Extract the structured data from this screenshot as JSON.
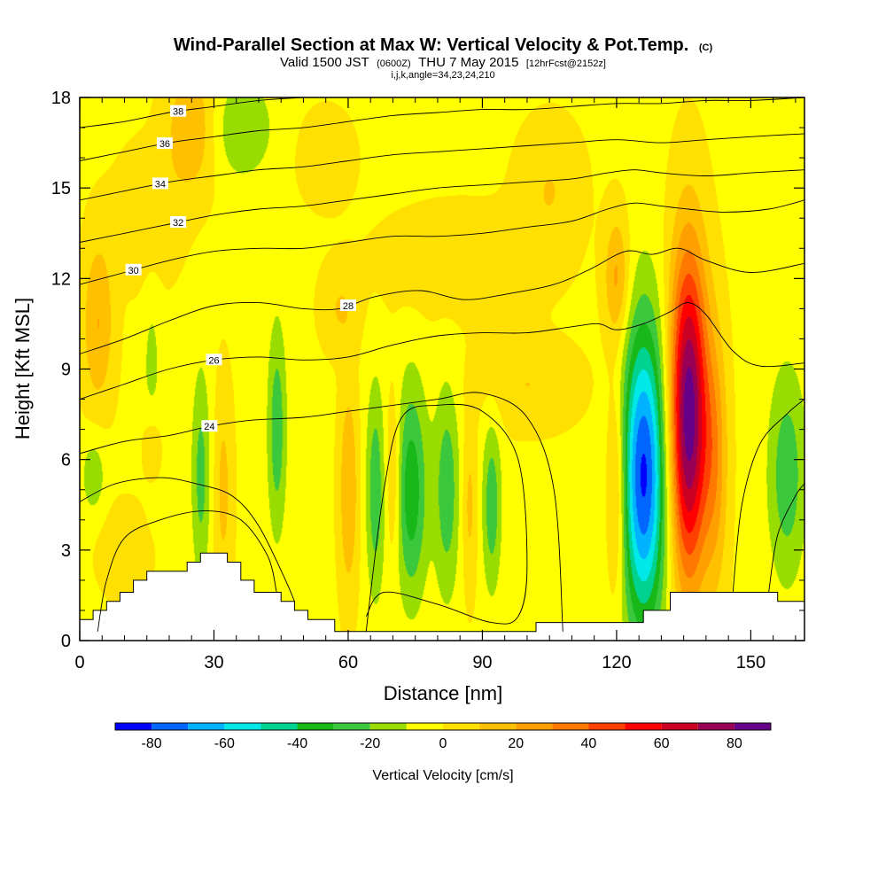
{
  "chart_data": {
    "type": "heatmap",
    "title": "Wind-Parallel Section at Max W: Vertical Velocity & Pot.Temp.",
    "title_mark": "(C)",
    "subtitle_parts": [
      "Valid 1500 JST",
      "(0600Z)",
      "THU 7 May 2015",
      "[12hrFcst@2152z]"
    ],
    "subtitle2": "i,j,k,angle=34,23,24,210",
    "xlabel": "Distance [nm]",
    "ylabel": "Height [Kft MSL]",
    "xlim": [
      0,
      162
    ],
    "ylim": [
      0,
      18
    ],
    "x_ticks": [
      0,
      30,
      60,
      90,
      120,
      150
    ],
    "y_ticks": [
      0,
      3,
      6,
      9,
      12,
      15,
      18
    ],
    "colorbar": {
      "label": "Vertical Velocity [cm/s]",
      "levels": [
        -90,
        -80,
        -70,
        -60,
        -50,
        -40,
        -30,
        -20,
        -10,
        0,
        10,
        20,
        30,
        40,
        50,
        60,
        70,
        80,
        90
      ],
      "colors": [
        "#0000ff",
        "#0066ff",
        "#00b2ff",
        "#00e8e8",
        "#00d290",
        "#18b818",
        "#3cc83c",
        "#99dd00",
        "#ffff00",
        "#ffe000",
        "#ffc000",
        "#ffa000",
        "#ff7800",
        "#ff4000",
        "#ff0000",
        "#cc0022",
        "#990055",
        "#660088"
      ],
      "tick_values": [
        -80,
        -60,
        -40,
        -20,
        0,
        20,
        40,
        60,
        80
      ]
    },
    "background_color": "#99dd00",
    "features": [
      {
        "x": 126,
        "y": 5.5,
        "sx": 3.5,
        "sy": 3.5,
        "w": -80
      },
      {
        "x": 136,
        "y": 7.5,
        "sx": 3.0,
        "sy": 3.8,
        "w": 90
      },
      {
        "x": 74,
        "y": 5.0,
        "sx": 2.5,
        "sy": 2.5,
        "w": -35
      },
      {
        "x": 66,
        "y": 5.0,
        "sx": 1.5,
        "sy": 2.5,
        "w": -25
      },
      {
        "x": 82,
        "y": 5.0,
        "sx": 2.0,
        "sy": 2.5,
        "w": -25
      },
      {
        "x": 92,
        "y": 4.5,
        "sx": 1.5,
        "sy": 2.0,
        "w": -25
      },
      {
        "x": 158,
        "y": 5.5,
        "sx": 3.0,
        "sy": 2.5,
        "w": -25
      },
      {
        "x": 44,
        "y": 7.0,
        "sx": 1.5,
        "sy": 2.5,
        "w": -25
      },
      {
        "x": 27,
        "y": 5.5,
        "sx": 1.5,
        "sy": 2.5,
        "w": -22
      },
      {
        "x": 3,
        "y": 5.5,
        "sx": 2.0,
        "sy": 1.0,
        "w": -15
      },
      {
        "x": 36,
        "y": 17.0,
        "sx": 5.0,
        "sy": 1.2,
        "w": -18
      },
      {
        "x": 16,
        "y": 8.5,
        "sx": 1.5,
        "sy": 2.5,
        "w": -12
      },
      {
        "x": 120,
        "y": 5.0,
        "sx": 1.5,
        "sy": 2.5,
        "w": 25
      },
      {
        "x": 142,
        "y": 6.0,
        "sx": 2.0,
        "sy": 3.0,
        "w": 25
      },
      {
        "x": 60,
        "y": 5.0,
        "sx": 1.5,
        "sy": 2.5,
        "w": 22
      },
      {
        "x": 70,
        "y": 5.5,
        "sx": 1.2,
        "sy": 2.0,
        "w": 18
      },
      {
        "x": 87,
        "y": 4.5,
        "sx": 1.2,
        "sy": 2.0,
        "w": 15
      },
      {
        "x": 32,
        "y": 5.0,
        "sx": 1.5,
        "sy": 2.5,
        "w": 15
      },
      {
        "x": 16,
        "y": 6.5,
        "sx": 1.5,
        "sy": 1.0,
        "w": 15
      },
      {
        "x": 120,
        "y": 12.0,
        "sx": 2.0,
        "sy": 1.5,
        "w": 25
      },
      {
        "x": 4,
        "y": 10.5,
        "sx": 2.5,
        "sy": 2.0,
        "w": 22
      },
      {
        "x": 25,
        "y": 17.0,
        "sx": 4.0,
        "sy": 1.5,
        "w": 22
      },
      {
        "x": 85,
        "y": 12.5,
        "sx": 12.0,
        "sy": 1.2,
        "w": 12
      },
      {
        "x": 55,
        "y": 16.0,
        "sx": 4.0,
        "sy": 1.0,
        "w": 12
      },
      {
        "x": 105,
        "y": 15.0,
        "sx": 5.0,
        "sy": 1.5,
        "w": 12
      },
      {
        "x": 15,
        "y": 14.0,
        "sx": 5.0,
        "sy": 1.5,
        "w": 12
      },
      {
        "x": 100,
        "y": 8.5,
        "sx": 8.0,
        "sy": 1.0,
        "w": 12
      },
      {
        "x": 58,
        "y": 11.0,
        "sx": 3.0,
        "sy": 1.0,
        "w": 12
      },
      {
        "x": 10,
        "y": 3.0,
        "sx": 4.0,
        "sy": 1.0,
        "w": 12
      }
    ],
    "terrain": [
      [
        0,
        0.7
      ],
      [
        3,
        0.7
      ],
      [
        3,
        1.0
      ],
      [
        6,
        1.0
      ],
      [
        6,
        1.3
      ],
      [
        9,
        1.3
      ],
      [
        9,
        1.6
      ],
      [
        12,
        1.6
      ],
      [
        12,
        2.0
      ],
      [
        15,
        2.0
      ],
      [
        15,
        2.3
      ],
      [
        24,
        2.3
      ],
      [
        24,
        2.6
      ],
      [
        27,
        2.6
      ],
      [
        27,
        2.9
      ],
      [
        33,
        2.9
      ],
      [
        33,
        2.6
      ],
      [
        36,
        2.6
      ],
      [
        36,
        2.0
      ],
      [
        39,
        2.0
      ],
      [
        39,
        1.6
      ],
      [
        45,
        1.6
      ],
      [
        45,
        1.3
      ],
      [
        48,
        1.3
      ],
      [
        48,
        1.0
      ],
      [
        51,
        1.0
      ],
      [
        51,
        0.7
      ],
      [
        57,
        0.7
      ],
      [
        57,
        0.3
      ],
      [
        60,
        0.3
      ],
      [
        60,
        0.3
      ],
      [
        102,
        0.3
      ],
      [
        102,
        0.6
      ],
      [
        126,
        0.6
      ],
      [
        126,
        1.0
      ],
      [
        132,
        1.0
      ],
      [
        132,
        1.6
      ],
      [
        156,
        1.6
      ],
      [
        156,
        1.3
      ],
      [
        162,
        1.3
      ]
    ],
    "theta_contours": [
      {
        "label": "24",
        "points": [
          [
            0,
            6.2
          ],
          [
            10,
            6.6
          ],
          [
            20,
            6.8
          ],
          [
            29,
            7.1
          ],
          [
            38,
            7.3
          ],
          [
            50,
            7.4
          ],
          [
            60,
            7.6
          ],
          [
            70,
            7.8
          ],
          [
            80,
            8.0
          ],
          [
            90,
            8.2
          ],
          [
            100,
            7.4
          ],
          [
            106,
            5.0
          ],
          [
            108,
            0.3
          ]
        ],
        "label_x": 29
      },
      {
        "label": "26",
        "points": [
          [
            0,
            8.0
          ],
          [
            10,
            8.5
          ],
          [
            20,
            9.0
          ],
          [
            30,
            9.3
          ],
          [
            40,
            9.4
          ],
          [
            50,
            9.3
          ],
          [
            60,
            9.4
          ],
          [
            70,
            9.8
          ],
          [
            80,
            10.1
          ],
          [
            90,
            10.2
          ],
          [
            100,
            10.2
          ],
          [
            110,
            10.4
          ],
          [
            116,
            10.5
          ],
          [
            120,
            10.3
          ],
          [
            126,
            10.5
          ],
          [
            132,
            10.9
          ],
          [
            136,
            11.2
          ],
          [
            140,
            10.8
          ],
          [
            146,
            9.6
          ],
          [
            152,
            9.1
          ],
          [
            162,
            9.2
          ]
        ],
        "label_x": 30
      },
      {
        "label": "28",
        "points": [
          [
            0,
            9.5
          ],
          [
            10,
            10.0
          ],
          [
            20,
            10.6
          ],
          [
            30,
            11.1
          ],
          [
            40,
            11.2
          ],
          [
            50,
            11.0
          ],
          [
            58,
            11.0
          ],
          [
            66,
            11.4
          ],
          [
            76,
            11.6
          ],
          [
            86,
            11.3
          ],
          [
            96,
            11.5
          ],
          [
            106,
            11.8
          ],
          [
            114,
            12.3
          ],
          [
            122,
            12.9
          ],
          [
            128,
            12.8
          ],
          [
            134,
            13.0
          ],
          [
            140,
            12.6
          ],
          [
            150,
            12.2
          ],
          [
            162,
            12.5
          ]
        ],
        "label_x": 60
      },
      {
        "label": "30",
        "points": [
          [
            0,
            11.8
          ],
          [
            10,
            12.2
          ],
          [
            20,
            12.6
          ],
          [
            30,
            12.9
          ],
          [
            40,
            13.0
          ],
          [
            50,
            13.0
          ],
          [
            60,
            13.2
          ],
          [
            70,
            13.4
          ],
          [
            80,
            13.4
          ],
          [
            90,
            13.5
          ],
          [
            100,
            13.7
          ],
          [
            110,
            13.9
          ],
          [
            118,
            14.3
          ],
          [
            124,
            14.5
          ],
          [
            130,
            14.4
          ],
          [
            136,
            14.3
          ],
          [
            144,
            14.2
          ],
          [
            154,
            14.3
          ],
          [
            162,
            14.6
          ]
        ],
        "label_x": 12
      },
      {
        "label": "32",
        "points": [
          [
            0,
            13.2
          ],
          [
            10,
            13.5
          ],
          [
            20,
            13.8
          ],
          [
            30,
            14.1
          ],
          [
            40,
            14.3
          ],
          [
            50,
            14.4
          ],
          [
            60,
            14.6
          ],
          [
            70,
            14.8
          ],
          [
            80,
            15.0
          ],
          [
            90,
            15.1
          ],
          [
            100,
            15.2
          ],
          [
            110,
            15.3
          ],
          [
            118,
            15.5
          ],
          [
            124,
            15.6
          ],
          [
            130,
            15.5
          ],
          [
            140,
            15.4
          ],
          [
            150,
            15.5
          ],
          [
            162,
            15.6
          ]
        ],
        "label_x": 22
      },
      {
        "label": "34",
        "points": [
          [
            0,
            14.6
          ],
          [
            10,
            14.9
          ],
          [
            20,
            15.2
          ],
          [
            30,
            15.4
          ],
          [
            40,
            15.6
          ],
          [
            50,
            15.7
          ],
          [
            60,
            15.9
          ],
          [
            70,
            16.1
          ],
          [
            80,
            16.2
          ],
          [
            90,
            16.3
          ],
          [
            100,
            16.4
          ],
          [
            110,
            16.5
          ],
          [
            120,
            16.6
          ],
          [
            130,
            16.5
          ],
          [
            140,
            16.6
          ],
          [
            150,
            16.7
          ],
          [
            162,
            16.8
          ]
        ],
        "label_x": 18
      },
      {
        "label": "36",
        "points": [
          [
            0,
            15.9
          ],
          [
            10,
            16.2
          ],
          [
            20,
            16.5
          ],
          [
            30,
            16.7
          ],
          [
            40,
            16.9
          ],
          [
            50,
            17.0
          ],
          [
            60,
            17.2
          ],
          [
            70,
            17.4
          ],
          [
            80,
            17.5
          ],
          [
            90,
            17.6
          ],
          [
            100,
            17.6
          ],
          [
            110,
            17.7
          ],
          [
            120,
            17.8
          ],
          [
            130,
            17.8
          ],
          [
            140,
            17.9
          ],
          [
            150,
            17.9
          ],
          [
            162,
            18.0
          ]
        ],
        "label_x": 19
      },
      {
        "label": "38",
        "points": [
          [
            0,
            17.0
          ],
          [
            10,
            17.2
          ],
          [
            20,
            17.5
          ],
          [
            30,
            17.7
          ],
          [
            40,
            17.9
          ],
          [
            50,
            18.0
          ]
        ],
        "label_x": 22
      }
    ],
    "extra_contours": [
      [
        [
          4,
          0.3
        ],
        [
          6,
          2.0
        ],
        [
          10,
          3.4
        ],
        [
          18,
          4.0
        ],
        [
          28,
          4.3
        ],
        [
          36,
          4.0
        ],
        [
          42,
          2.8
        ],
        [
          44,
          1.6
        ]
      ],
      [
        [
          0,
          4.6
        ],
        [
          8,
          5.2
        ],
        [
          18,
          5.4
        ],
        [
          26,
          5.2
        ],
        [
          34,
          4.8
        ],
        [
          40,
          3.8
        ],
        [
          46,
          2.0
        ],
        [
          48,
          1.3
        ]
      ],
      [
        [
          64,
          0.3
        ],
        [
          68,
          5.0
        ],
        [
          72,
          7.4
        ],
        [
          80,
          7.8
        ],
        [
          90,
          7.6
        ],
        [
          98,
          6.0
        ],
        [
          100,
          2.5
        ],
        [
          98,
          0.8
        ],
        [
          92,
          0.6
        ],
        [
          80,
          1.2
        ],
        [
          68,
          1.6
        ],
        [
          64,
          0.8
        ]
      ],
      [
        [
          146,
          1.6
        ],
        [
          148,
          4.5
        ],
        [
          152,
          6.5
        ],
        [
          158,
          7.5
        ],
        [
          162,
          8.0
        ]
      ],
      [
        [
          154,
          1.6
        ],
        [
          156,
          3.5
        ],
        [
          160,
          4.8
        ],
        [
          162,
          5.2
        ]
      ]
    ]
  }
}
